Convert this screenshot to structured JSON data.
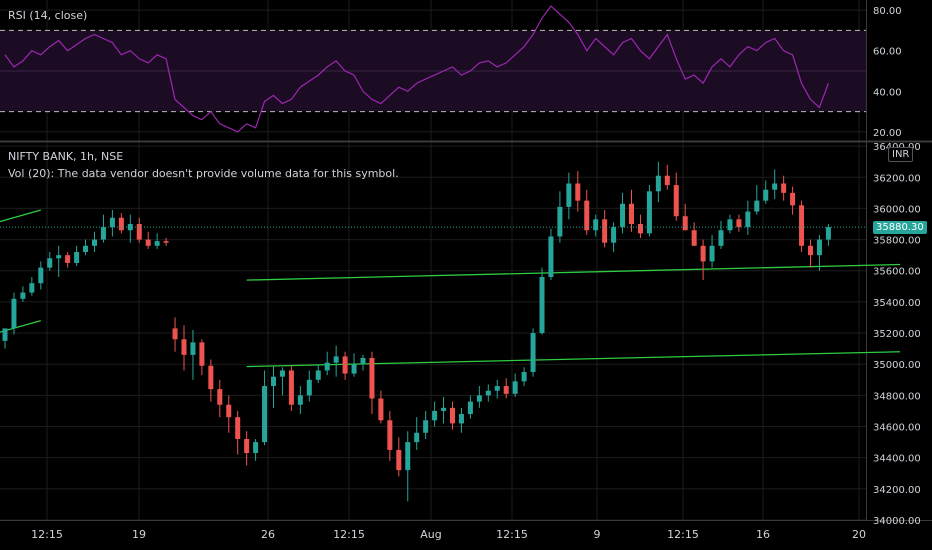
{
  "rsi_pane": {
    "title": "RSI (14, close)",
    "upper_band": 70,
    "lower_band": 30,
    "ylim": [
      16,
      84
    ],
    "ticks": [
      "80.00",
      "60.00",
      "40.00",
      "20.00"
    ],
    "tick_values": [
      80,
      60,
      40,
      20
    ],
    "line_color": "#9c27b0",
    "band_fill": "#1b0c24"
  },
  "price_pane": {
    "symbol_line": "NIFTY BANK, 1h, NSE",
    "volume_note": "Vol (20): The data vendor doesn't provide volume data for this symbol.",
    "currency": "INR",
    "last_price": "35880.30",
    "last_price_value": 35880.3,
    "ylim": [
      34000,
      36420
    ],
    "ticks": [
      "36400.00",
      "36200.00",
      "36000.00",
      "35800.00",
      "35600.00",
      "35400.00",
      "35200.00",
      "35000.00",
      "34800.00",
      "34600.00",
      "34400.00",
      "34200.00",
      "34000.00"
    ],
    "tick_values": [
      36400,
      36200,
      36000,
      35800,
      35600,
      35400,
      35200,
      35000,
      34800,
      34600,
      34400,
      34200,
      34000
    ],
    "up_color": "#26a69a",
    "down_color": "#ef5350",
    "trendline_color": "#2ecc40"
  },
  "x_axis": {
    "labels": [
      "12:15",
      "19",
      "26",
      "12:15",
      "Aug",
      "12:15",
      "9",
      "12:15",
      "16",
      "20"
    ]
  },
  "chart_data": {
    "type": "candlestick",
    "ohlc_open": [
      35150,
      35230,
      35420,
      35460,
      35520,
      35620,
      35680,
      35700,
      35650,
      35720,
      35760,
      35800,
      35880,
      35940,
      35860,
      35900,
      35800,
      35760,
      35790,
      35230,
      35160,
      35060,
      35140,
      34990,
      34840,
      34740,
      34660,
      34520,
      34430,
      34500,
      34860,
      34920,
      34960,
      34740,
      34800,
      34900,
      34960,
      35010,
      35050,
      34940,
      35000,
      35040,
      34780,
      34640,
      34450,
      34320,
      34500,
      34560,
      34640,
      34700,
      34720,
      34620,
      34680,
      34760,
      34800,
      34830,
      34860,
      34810,
      34890,
      34950,
      35200,
      35560,
      35820,
      36010,
      36160,
      36050,
      35860,
      35930,
      35780,
      35880,
      36030,
      35900,
      35840,
      36110,
      36210,
      36150,
      35950,
      35860,
      35760,
      35660,
      35760,
      35860,
      35930,
      35880,
      35980,
      36050,
      36120,
      36160,
      36100,
      36020,
      35760,
      35700,
      35800
    ],
    "ohlc_high": [
      35220,
      35460,
      35500,
      35560,
      35660,
      35720,
      35760,
      35720,
      35760,
      35800,
      35850,
      35960,
      35990,
      35970,
      35960,
      35940,
      35850,
      35840,
      35810,
      35300,
      35250,
      35220,
      35160,
      35030,
      34900,
      34800,
      34700,
      34570,
      34520,
      34960,
      34990,
      34980,
      34990,
      34860,
      34960,
      35000,
      35080,
      35120,
      35080,
      35070,
      35060,
      35080,
      34830,
      34700,
      34530,
      34570,
      34660,
      34700,
      34760,
      34790,
      34760,
      34720,
      34800,
      34860,
      34870,
      34900,
      34910,
      34940,
      34980,
      35230,
      35620,
      35870,
      36110,
      36230,
      36240,
      36120,
      35960,
      35990,
      35910,
      36100,
      36120,
      35960,
      36150,
      36300,
      36280,
      36230,
      36030,
      35910,
      35800,
      35830,
      35920,
      35960,
      35960,
      36050,
      36150,
      36180,
      36250,
      36210,
      36140,
      36050,
      35800,
      35830,
      35900
    ],
    "ohlc_low": [
      35100,
      35190,
      35400,
      35440,
      35480,
      35600,
      35560,
      35620,
      35630,
      35700,
      35720,
      35780,
      35820,
      35840,
      35780,
      35780,
      35740,
      35740,
      35760,
      35080,
      34960,
      34900,
      34930,
      34760,
      34660,
      34560,
      34420,
      34350,
      34380,
      34480,
      34720,
      34800,
      34700,
      34680,
      34760,
      34880,
      34930,
      34920,
      34900,
      34920,
      34960,
      34680,
      34620,
      34380,
      34280,
      34120,
      34450,
      34520,
      34600,
      34620,
      34580,
      34560,
      34650,
      34720,
      34760,
      34780,
      34780,
      34790,
      34860,
      34920,
      35190,
      35540,
      35780,
      35930,
      35980,
      35830,
      35820,
      35750,
      35720,
      35840,
      35850,
      35810,
      35820,
      36040,
      36120,
      35920,
      35860,
      35760,
      35540,
      35620,
      35740,
      35840,
      35850,
      35830,
      35960,
      36030,
      36060,
      36050,
      35960,
      35720,
      35620,
      35600,
      35760
    ],
    "ohlc_close": [
      35230,
      35420,
      35460,
      35520,
      35620,
      35680,
      35700,
      35650,
      35720,
      35760,
      35800,
      35880,
      35940,
      35860,
      35900,
      35800,
      35760,
      35790,
      35780,
      35160,
      35060,
      35140,
      34990,
      34840,
      34740,
      34660,
      34520,
      34430,
      34500,
      34860,
      34920,
      34960,
      34740,
      34800,
      34900,
      34960,
      35010,
      35050,
      34940,
      35000,
      35040,
      34780,
      34640,
      34450,
      34320,
      34500,
      34560,
      34640,
      34700,
      34720,
      34620,
      34680,
      34760,
      34800,
      34830,
      34860,
      34810,
      34890,
      34950,
      35200,
      35560,
      35820,
      36010,
      36160,
      36050,
      35860,
      35930,
      35780,
      35880,
      36030,
      35900,
      35840,
      36110,
      36210,
      36150,
      35950,
      35860,
      35760,
      35660,
      35760,
      35860,
      35930,
      35880,
      35980,
      36050,
      36120,
      36160,
      36100,
      36020,
      35760,
      35700,
      35800,
      35880
    ],
    "rsi": [
      58,
      52,
      55,
      60,
      58,
      62,
      65,
      60,
      63,
      66,
      68,
      66,
      64,
      58,
      60,
      56,
      54,
      58,
      56,
      36,
      32,
      28,
      26,
      30,
      24,
      22,
      20,
      24,
      22,
      35,
      38,
      34,
      36,
      42,
      45,
      48,
      52,
      55,
      50,
      48,
      40,
      36,
      34,
      38,
      42,
      40,
      44,
      46,
      48,
      50,
      52,
      48,
      50,
      54,
      55,
      52,
      54,
      58,
      62,
      68,
      76,
      82,
      78,
      74,
      68,
      60,
      66,
      62,
      58,
      64,
      66,
      60,
      56,
      62,
      68,
      56,
      46,
      48,
      44,
      52,
      56,
      52,
      58,
      62,
      60,
      64,
      66,
      60,
      58,
      44,
      36,
      32,
      44
    ],
    "trendlines": [
      {
        "x": [
          -4,
          4
        ],
        "y": [
          35860,
          35990
        ]
      },
      {
        "x": [
          -4,
          4
        ],
        "y": [
          35150,
          35280
        ]
      },
      {
        "x": [
          27,
          100
        ],
        "y": [
          35540,
          35640
        ]
      },
      {
        "x": [
          27,
          100
        ],
        "y": [
          34985,
          35080
        ]
      }
    ]
  }
}
